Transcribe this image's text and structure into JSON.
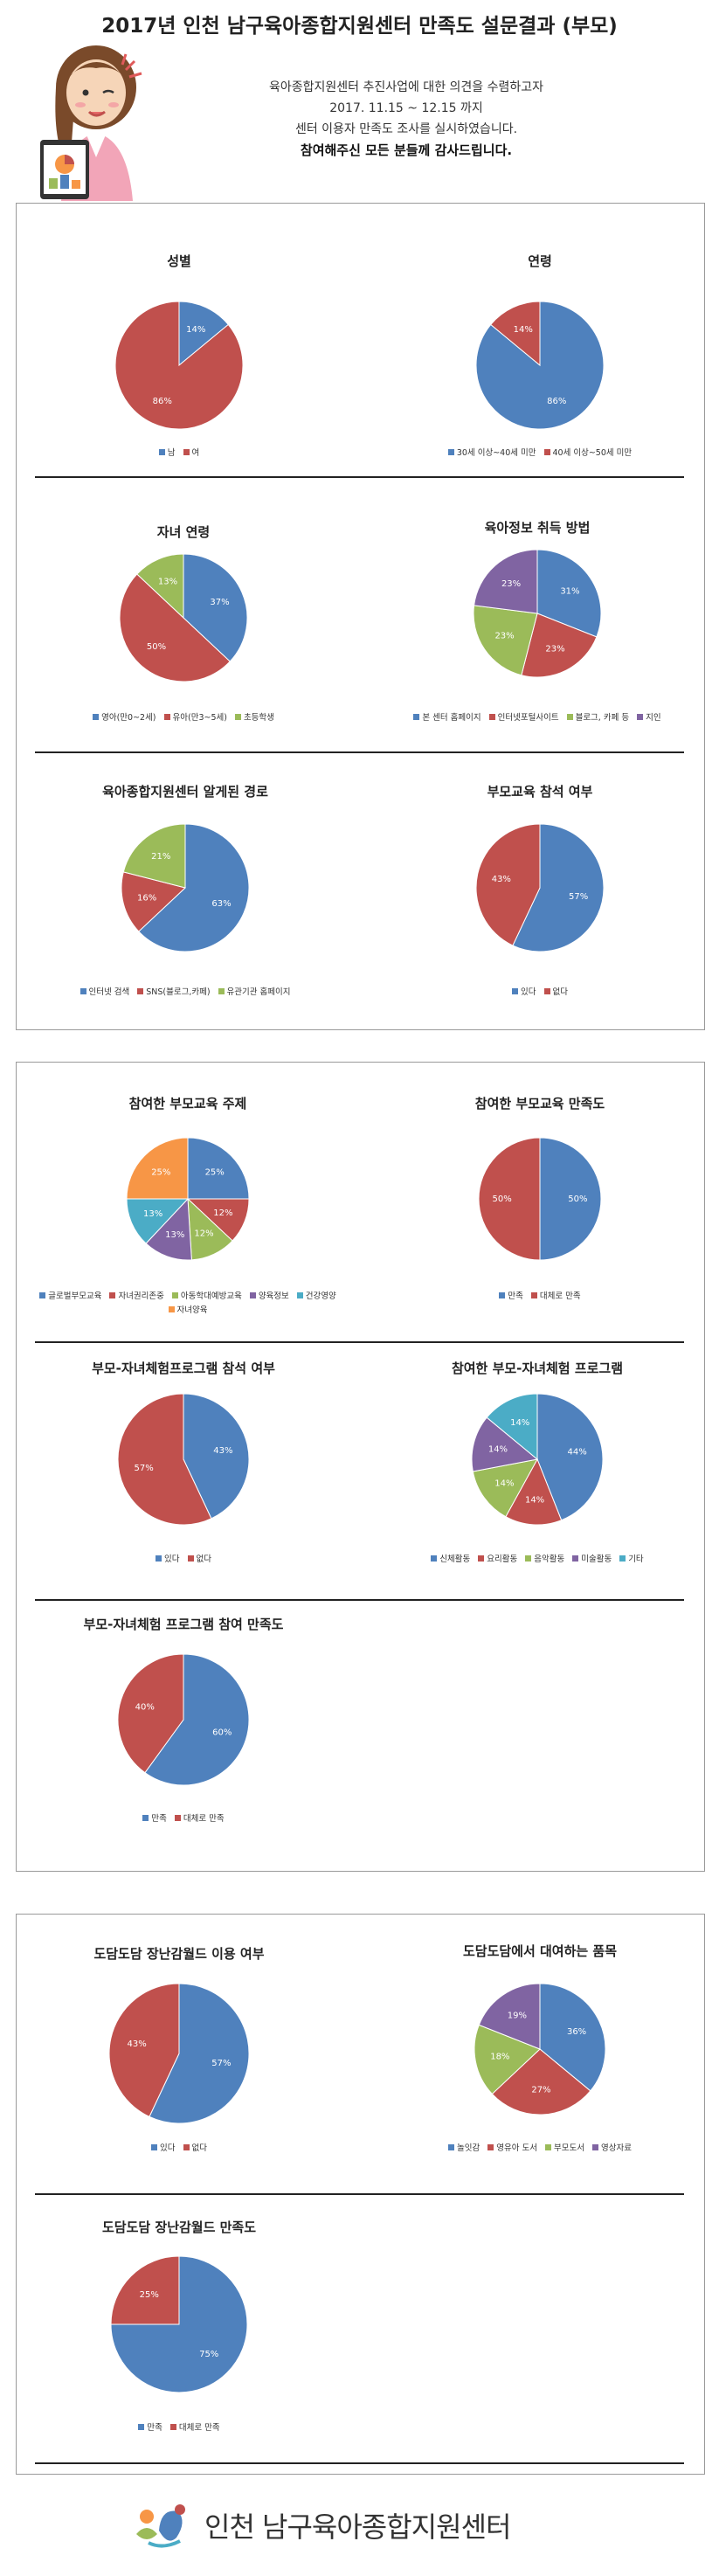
{
  "page": {
    "title": "2017년 인천 남구육아종합지원센터 만족도 설문결과 (부모)",
    "intro": [
      "육아종합지원센터 추진사업에 대한 의견을 수렴하고자",
      "2017. 11.15 ~ 12.15 까지",
      "센터 이용자 만족도 조사를 실시하였습니다."
    ],
    "thanks": "참여해주신 모든 분들께 감사드립니다.",
    "footer_name": "인천 남구육아종합지원센터"
  },
  "colors": {
    "blue": "#4f81bd",
    "red": "#c0504d",
    "green": "#9bbb59",
    "purple": "#8064a2",
    "teal": "#4bacc6",
    "orange": "#f79646"
  },
  "chart_data": [
    {
      "type": "pie",
      "title": "성별",
      "categories": [
        "남",
        "여"
      ],
      "values": [
        14,
        86
      ],
      "labels": [
        "14%",
        "86%"
      ],
      "colors": [
        "#4f81bd",
        "#c0504d"
      ],
      "legend": "bottom"
    },
    {
      "type": "pie",
      "title": "연령",
      "categories": [
        "30세 이상~40세 미만",
        "40세 이상~50세 미만"
      ],
      "values": [
        86,
        14
      ],
      "labels": [
        "86%",
        "14%"
      ],
      "colors": [
        "#4f81bd",
        "#c0504d"
      ],
      "legend": "bottom"
    },
    {
      "type": "pie",
      "title": "자녀 연령",
      "categories": [
        "영아(만0~2세)",
        "유아(만3~5세)",
        "초등학생"
      ],
      "values": [
        37,
        50,
        13
      ],
      "labels": [
        "37%",
        "50%",
        "13%"
      ],
      "colors": [
        "#4f81bd",
        "#c0504d",
        "#9bbb59"
      ],
      "legend": "bottom"
    },
    {
      "type": "pie",
      "title": "육아정보 취득 방법",
      "categories": [
        "본 센터 홈페이지",
        "인터넷포털사이트",
        "블로그, 카페 등",
        "지인"
      ],
      "values": [
        31,
        23,
        23,
        23
      ],
      "labels": [
        "31%",
        "23%",
        "23%",
        "23%"
      ],
      "colors": [
        "#4f81bd",
        "#c0504d",
        "#9bbb59",
        "#8064a2"
      ],
      "legend": "bottom"
    },
    {
      "type": "pie",
      "title": "육아종합지원센터 알게된 경로",
      "categories": [
        "인터넷 검색",
        "SNS(블로그,카페)",
        "유관기관 홈페이지"
      ],
      "values": [
        63,
        16,
        21
      ],
      "labels": [
        "63%",
        "16%",
        "21%"
      ],
      "colors": [
        "#4f81bd",
        "#c0504d",
        "#9bbb59"
      ],
      "legend": "bottom"
    },
    {
      "type": "pie",
      "title": "부모교육 참석 여부",
      "categories": [
        "있다",
        "없다"
      ],
      "values": [
        57,
        43
      ],
      "labels": [
        "57%",
        "43%"
      ],
      "colors": [
        "#4f81bd",
        "#c0504d"
      ],
      "legend": "bottom"
    },
    {
      "type": "pie",
      "title": "참여한 부모교육 주제",
      "categories": [
        "글로벌부모교육",
        "자녀권리존중",
        "아동학대예방교육",
        "양육정보",
        "건강영양",
        "자녀양육"
      ],
      "values": [
        25,
        12,
        12,
        13,
        13,
        25
      ],
      "labels": [
        "25%",
        "12%",
        "12%",
        "13%",
        "13%",
        "25%"
      ],
      "colors": [
        "#4f81bd",
        "#c0504d",
        "#9bbb59",
        "#8064a2",
        "#4bacc6",
        "#f79646"
      ],
      "legend": "bottom"
    },
    {
      "type": "pie",
      "title": "참여한 부모교육 만족도",
      "categories": [
        "만족",
        "대체로 만족"
      ],
      "values": [
        50,
        50
      ],
      "labels": [
        "50%",
        "50%"
      ],
      "colors": [
        "#4f81bd",
        "#c0504d"
      ],
      "legend": "bottom"
    },
    {
      "type": "pie",
      "title": "부모-자녀체험프로그램 참석 여부",
      "categories": [
        "있다",
        "없다"
      ],
      "values": [
        43,
        57
      ],
      "labels": [
        "43%",
        "57%"
      ],
      "colors": [
        "#4f81bd",
        "#c0504d"
      ],
      "legend": "bottom"
    },
    {
      "type": "pie",
      "title": "참여한 부모-자녀체험 프로그램",
      "categories": [
        "신체활동",
        "요리활동",
        "음악활동",
        "미술활동",
        "기타"
      ],
      "values": [
        44,
        14,
        14,
        14,
        14
      ],
      "labels": [
        "44%",
        "14%",
        "14%",
        "14%",
        "14%"
      ],
      "colors": [
        "#4f81bd",
        "#c0504d",
        "#9bbb59",
        "#8064a2",
        "#4bacc6"
      ],
      "legend": "bottom"
    },
    {
      "type": "pie",
      "title": "부모-자녀체험 프로그램 참여 만족도",
      "categories": [
        "만족",
        "대체로 만족"
      ],
      "values": [
        60,
        40
      ],
      "labels": [
        "60%",
        "40%"
      ],
      "colors": [
        "#4f81bd",
        "#c0504d"
      ],
      "legend": "bottom"
    },
    {
      "type": "pie",
      "title": "도담도담 장난감월드 이용 여부",
      "categories": [
        "있다",
        "없다"
      ],
      "values": [
        57,
        43
      ],
      "labels": [
        "57%",
        "43%"
      ],
      "colors": [
        "#4f81bd",
        "#c0504d"
      ],
      "legend": "bottom"
    },
    {
      "type": "pie",
      "title": "도담도담에서 대여하는 품목",
      "categories": [
        "놀잇감",
        "영유아 도서",
        "부모도서",
        "영상자료"
      ],
      "values": [
        36,
        27,
        18,
        19
      ],
      "labels": [
        "36%",
        "27%",
        "18%",
        "19%"
      ],
      "colors": [
        "#4f81bd",
        "#c0504d",
        "#9bbb59",
        "#8064a2"
      ],
      "legend": "bottom"
    },
    {
      "type": "pie",
      "title": "도담도담 장난감월드 만족도",
      "categories": [
        "만족",
        "대체로 만족"
      ],
      "values": [
        75,
        25
      ],
      "labels": [
        "75%",
        "25%"
      ],
      "colors": [
        "#4f81bd",
        "#c0504d"
      ],
      "legend": "bottom"
    }
  ]
}
